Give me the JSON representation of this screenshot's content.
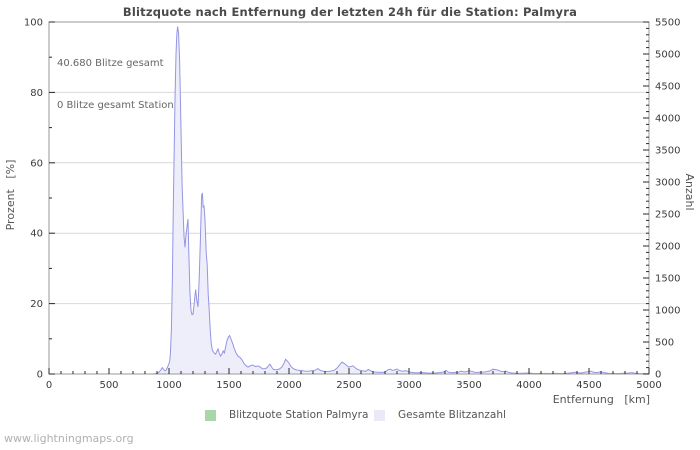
{
  "watermark": "www.lightningmaps.org",
  "chart_data": {
    "type": "area",
    "title": "Blitzquote nach Entfernung der letzten 24h für die Station: Palmyra",
    "annotation": {
      "line1": "40.680 Blitze gesamt",
      "line2": "0 Blitze gesamt Station"
    },
    "xlabel": "Entfernung   [km]",
    "ylabel_left": "Prozent   [%]",
    "ylabel_right": "Anzahl",
    "x_range": [
      0,
      5000
    ],
    "x_major_ticks": [
      0,
      500,
      1000,
      1500,
      2000,
      2500,
      3000,
      3500,
      4000,
      4500,
      5000
    ],
    "x_minor_step": 100,
    "y_left_range": [
      0,
      100
    ],
    "y_left_major_ticks": [
      0,
      20,
      40,
      60,
      80,
      100
    ],
    "y_left_minor_step": 10,
    "y_right_range": [
      0,
      5500
    ],
    "y_right_major_ticks": [
      0,
      500,
      1000,
      1500,
      2000,
      2500,
      3000,
      3500,
      4000,
      4500,
      5000,
      5500
    ],
    "y_right_minor_step": 100,
    "grid": "horizontal-on-left-major-ticks",
    "legend_position": "bottom-center",
    "colors": {
      "total_line": "#9595e2",
      "total_fill": "#eeeefa",
      "station": "#a8d8a8",
      "grid": "#d9d9d9",
      "frame": "#999999",
      "tick": "#2a2a2a",
      "tick_label": "#3c3c3c"
    },
    "legend": [
      {
        "label": "Blitzquote Station Palmyra",
        "swatch": "#a8d8a8"
      },
      {
        "label": "Gesamte Blitzanzahl",
        "swatch": "#e9e9f8"
      }
    ],
    "series": [
      {
        "name": "Blitzquote Station Palmyra",
        "axis": "left",
        "color": "#a8d8a8",
        "fill": null,
        "points": [
          [
            0,
            0
          ],
          [
            5000,
            0
          ]
        ]
      },
      {
        "name": "Gesamte Blitzanzahl",
        "axis": "right",
        "color": "#9595e2",
        "fill": "#eeeefa",
        "points": [
          [
            0,
            0
          ],
          [
            300,
            0
          ],
          [
            600,
            0
          ],
          [
            800,
            0
          ],
          [
            860,
            0
          ],
          [
            880,
            5
          ],
          [
            900,
            10
          ],
          [
            915,
            25
          ],
          [
            930,
            60
          ],
          [
            945,
            100
          ],
          [
            955,
            70
          ],
          [
            965,
            50
          ],
          [
            975,
            60
          ],
          [
            985,
            95
          ],
          [
            995,
            140
          ],
          [
            1005,
            190
          ],
          [
            1012,
            320
          ],
          [
            1020,
            700
          ],
          [
            1028,
            1500
          ],
          [
            1035,
            2500
          ],
          [
            1043,
            3500
          ],
          [
            1050,
            4300
          ],
          [
            1058,
            5000
          ],
          [
            1065,
            5300
          ],
          [
            1072,
            5430
          ],
          [
            1080,
            5320
          ],
          [
            1088,
            4900
          ],
          [
            1095,
            4300
          ],
          [
            1103,
            3500
          ],
          [
            1110,
            2900
          ],
          [
            1118,
            2500
          ],
          [
            1125,
            2150
          ],
          [
            1133,
            1980
          ],
          [
            1140,
            2150
          ],
          [
            1150,
            2300
          ],
          [
            1158,
            2420
          ],
          [
            1165,
            1900
          ],
          [
            1175,
            1250
          ],
          [
            1183,
            990
          ],
          [
            1192,
            930
          ],
          [
            1200,
            935
          ],
          [
            1210,
            1100
          ],
          [
            1222,
            1320
          ],
          [
            1232,
            1150
          ],
          [
            1242,
            1050
          ],
          [
            1252,
            1500
          ],
          [
            1262,
            2100
          ],
          [
            1272,
            2780
          ],
          [
            1278,
            2830
          ],
          [
            1285,
            2600
          ],
          [
            1292,
            2630
          ],
          [
            1300,
            2400
          ],
          [
            1310,
            1900
          ],
          [
            1318,
            1700
          ],
          [
            1327,
            1250
          ],
          [
            1335,
            1000
          ],
          [
            1343,
            700
          ],
          [
            1352,
            480
          ],
          [
            1362,
            370
          ],
          [
            1375,
            330
          ],
          [
            1388,
            310
          ],
          [
            1400,
            360
          ],
          [
            1408,
            390
          ],
          [
            1418,
            330
          ],
          [
            1428,
            280
          ],
          [
            1440,
            310
          ],
          [
            1452,
            360
          ],
          [
            1462,
            330
          ],
          [
            1472,
            420
          ],
          [
            1483,
            520
          ],
          [
            1495,
            580
          ],
          [
            1505,
            600
          ],
          [
            1517,
            545
          ],
          [
            1530,
            480
          ],
          [
            1542,
            410
          ],
          [
            1558,
            330
          ],
          [
            1575,
            280
          ],
          [
            1592,
            260
          ],
          [
            1608,
            220
          ],
          [
            1625,
            165
          ],
          [
            1642,
            130
          ],
          [
            1658,
            110
          ],
          [
            1675,
            125
          ],
          [
            1692,
            140
          ],
          [
            1708,
            130
          ],
          [
            1722,
            115
          ],
          [
            1738,
            125
          ],
          [
            1752,
            120
          ],
          [
            1768,
            95
          ],
          [
            1785,
            80
          ],
          [
            1800,
            85
          ],
          [
            1815,
            95
          ],
          [
            1830,
            130
          ],
          [
            1842,
            155
          ],
          [
            1855,
            110
          ],
          [
            1870,
            70
          ],
          [
            1888,
            65
          ],
          [
            1905,
            70
          ],
          [
            1922,
            80
          ],
          [
            1940,
            110
          ],
          [
            1958,
            165
          ],
          [
            1972,
            230
          ],
          [
            1985,
            205
          ],
          [
            2000,
            170
          ],
          [
            2015,
            120
          ],
          [
            2032,
            90
          ],
          [
            2050,
            70
          ],
          [
            2075,
            58
          ],
          [
            2100,
            55
          ],
          [
            2130,
            45
          ],
          [
            2160,
            42
          ],
          [
            2190,
            50
          ],
          [
            2220,
            60
          ],
          [
            2242,
            85
          ],
          [
            2262,
            55
          ],
          [
            2290,
            42
          ],
          [
            2320,
            38
          ],
          [
            2350,
            45
          ],
          [
            2378,
            60
          ],
          [
            2400,
            90
          ],
          [
            2425,
            150
          ],
          [
            2442,
            188
          ],
          [
            2458,
            165
          ],
          [
            2478,
            140
          ],
          [
            2495,
            110
          ],
          [
            2515,
            115
          ],
          [
            2532,
            128
          ],
          [
            2550,
            100
          ],
          [
            2570,
            72
          ],
          [
            2592,
            58
          ],
          [
            2615,
            48
          ],
          [
            2640,
            42
          ],
          [
            2662,
            70
          ],
          [
            2685,
            45
          ],
          [
            2710,
            32
          ],
          [
            2740,
            28
          ],
          [
            2770,
            25
          ],
          [
            2800,
            30
          ],
          [
            2825,
            65
          ],
          [
            2845,
            75
          ],
          [
            2862,
            55
          ],
          [
            2882,
            65
          ],
          [
            2900,
            78
          ],
          [
            2920,
            55
          ],
          [
            2945,
            42
          ],
          [
            2968,
            50
          ],
          [
            2990,
            42
          ],
          [
            3015,
            28
          ],
          [
            3045,
            20
          ],
          [
            3080,
            18
          ],
          [
            3115,
            22
          ],
          [
            3150,
            15
          ],
          [
            3185,
            14
          ],
          [
            3220,
            16
          ],
          [
            3255,
            22
          ],
          [
            3285,
            30
          ],
          [
            3308,
            55
          ],
          [
            3330,
            28
          ],
          [
            3360,
            18
          ],
          [
            3390,
            25
          ],
          [
            3415,
            30
          ],
          [
            3435,
            45
          ],
          [
            3460,
            32
          ],
          [
            3480,
            38
          ],
          [
            3500,
            48
          ],
          [
            3520,
            42
          ],
          [
            3545,
            28
          ],
          [
            3570,
            25
          ],
          [
            3600,
            30
          ],
          [
            3625,
            32
          ],
          [
            3650,
            38
          ],
          [
            3675,
            48
          ],
          [
            3700,
            75
          ],
          [
            3725,
            68
          ],
          [
            3745,
            60
          ],
          [
            3768,
            40
          ],
          [
            3790,
            35
          ],
          [
            3808,
            45
          ],
          [
            3830,
            25
          ],
          [
            3855,
            15
          ],
          [
            3885,
            12
          ],
          [
            3915,
            10
          ],
          [
            3945,
            12
          ],
          [
            3975,
            14
          ],
          [
            4000,
            15
          ],
          [
            4030,
            10
          ],
          [
            4065,
            8
          ],
          [
            4100,
            8
          ],
          [
            4140,
            10
          ],
          [
            4180,
            8
          ],
          [
            4220,
            10
          ],
          [
            4260,
            8
          ],
          [
            4300,
            8
          ],
          [
            4330,
            14
          ],
          [
            4355,
            20
          ],
          [
            4385,
            28
          ],
          [
            4410,
            20
          ],
          [
            4440,
            16
          ],
          [
            4465,
            28
          ],
          [
            4490,
            35
          ],
          [
            4515,
            45
          ],
          [
            4535,
            30
          ],
          [
            4560,
            22
          ],
          [
            4585,
            30
          ],
          [
            4605,
            33
          ],
          [
            4630,
            18
          ],
          [
            4660,
            12
          ],
          [
            4695,
            8
          ],
          [
            4730,
            8
          ],
          [
            4765,
            10
          ],
          [
            4800,
            12
          ],
          [
            4830,
            16
          ],
          [
            4858,
            22
          ],
          [
            4885,
            12
          ],
          [
            4915,
            8
          ],
          [
            4950,
            5
          ],
          [
            4980,
            4
          ],
          [
            5000,
            4
          ]
        ]
      }
    ]
  }
}
